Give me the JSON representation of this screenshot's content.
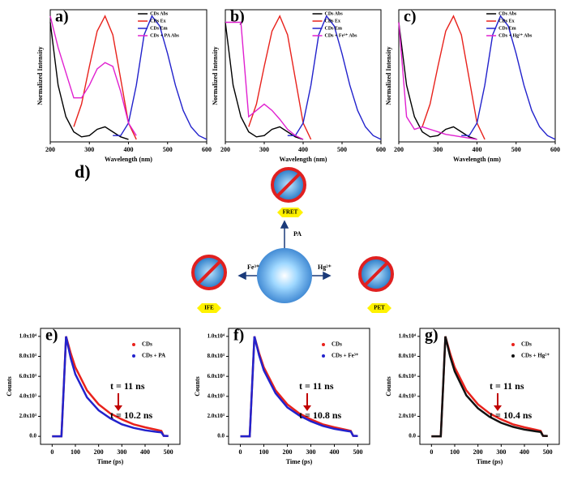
{
  "chart_data": [
    {
      "type": "line",
      "label": "a)",
      "xlabel": "Wavelength (nm)",
      "ylabel": "Normalized Intensity",
      "legend": "upper right",
      "x": [
        200,
        220,
        240,
        260,
        280,
        300,
        320,
        340,
        360,
        380,
        400,
        420,
        440,
        460,
        480,
        500,
        520,
        540,
        560,
        580,
        600
      ],
      "xlim": [
        200,
        600
      ],
      "xticks": [
        200,
        300,
        400,
        500,
        600
      ],
      "ylim": [
        0,
        1.05
      ],
      "series": [
        {
          "name": "CDs Abs",
          "color": "#000000",
          "values": [
            0.95,
            0.45,
            0.2,
            0.08,
            0.04,
            0.05,
            0.1,
            0.12,
            0.08,
            0.04,
            0.02,
            null,
            null,
            null,
            null,
            null,
            null,
            null,
            null,
            null,
            null
          ]
        },
        {
          "name": "CDs Ex",
          "color": "#e8221c",
          "values": [
            null,
            null,
            null,
            0.12,
            0.3,
            0.6,
            0.88,
            1.0,
            0.85,
            0.5,
            0.15,
            0.02,
            null,
            null,
            null,
            null,
            null,
            null,
            null,
            null,
            null
          ]
        },
        {
          "name": "CDs Em",
          "color": "#2222cc",
          "values": [
            null,
            null,
            null,
            null,
            null,
            null,
            null,
            null,
            0.05,
            0.05,
            0.15,
            0.45,
            0.85,
            1.0,
            0.92,
            0.7,
            0.45,
            0.25,
            0.12,
            0.05,
            0.02
          ]
        },
        {
          "name": "CDs + PA Abs",
          "color": "#e020d0",
          "values": [
            1.0,
            0.75,
            0.55,
            0.35,
            0.35,
            0.45,
            0.58,
            0.63,
            0.6,
            0.4,
            0.15,
            0.05,
            null,
            null,
            null,
            null,
            null,
            null,
            null,
            null,
            null
          ]
        }
      ]
    },
    {
      "type": "line",
      "label": "b)",
      "xlabel": "Wavelength (nm)",
      "ylabel": "Normalized Intensity",
      "legend": "upper right",
      "x": [
        200,
        220,
        240,
        260,
        280,
        300,
        320,
        340,
        360,
        380,
        400,
        420,
        440,
        460,
        480,
        500,
        520,
        540,
        560,
        580,
        600
      ],
      "xlim": [
        200,
        600
      ],
      "xticks": [
        200,
        300,
        400,
        500,
        600
      ],
      "ylim": [
        0,
        1.05
      ],
      "series": [
        {
          "name": "CDs Abs",
          "color": "#000000",
          "values": [
            0.95,
            0.45,
            0.2,
            0.08,
            0.04,
            0.05,
            0.1,
            0.12,
            0.08,
            0.04,
            0.02,
            null,
            null,
            null,
            null,
            null,
            null,
            null,
            null,
            null,
            null
          ]
        },
        {
          "name": "CDs Ex",
          "color": "#e8221c",
          "values": [
            null,
            null,
            null,
            0.12,
            0.3,
            0.6,
            0.88,
            1.0,
            0.85,
            0.5,
            0.15,
            0.02,
            null,
            null,
            null,
            null,
            null,
            null,
            null,
            null,
            null
          ]
        },
        {
          "name": "CDs Em",
          "color": "#2222cc",
          "values": [
            null,
            null,
            null,
            null,
            null,
            null,
            null,
            null,
            0.05,
            0.05,
            0.15,
            0.45,
            0.85,
            1.0,
            0.92,
            0.7,
            0.45,
            0.25,
            0.12,
            0.05,
            0.02
          ]
        },
        {
          "name": "CDs + Fe³⁺ Abs",
          "color": "#e020d0",
          "values": [
            0.95,
            0.95,
            0.95,
            0.2,
            0.25,
            0.3,
            0.25,
            0.18,
            0.1,
            0.05,
            0.02,
            null,
            null,
            null,
            null,
            null,
            null,
            null,
            null,
            null,
            null
          ]
        }
      ]
    },
    {
      "type": "line",
      "label": "c)",
      "xlabel": "Wavelength (nm)",
      "ylabel": "Normalized Intensity",
      "legend": "upper right",
      "x": [
        200,
        220,
        240,
        260,
        280,
        300,
        320,
        340,
        360,
        380,
        400,
        420,
        440,
        460,
        480,
        500,
        520,
        540,
        560,
        580,
        600
      ],
      "xlim": [
        200,
        600
      ],
      "xticks": [
        200,
        300,
        400,
        500,
        600
      ],
      "ylim": [
        0,
        1.05
      ],
      "series": [
        {
          "name": "CDs Abs",
          "color": "#000000",
          "values": [
            0.95,
            0.45,
            0.2,
            0.08,
            0.04,
            0.05,
            0.1,
            0.12,
            0.08,
            0.04,
            0.02,
            null,
            null,
            null,
            null,
            null,
            null,
            null,
            null,
            null,
            null
          ]
        },
        {
          "name": "CDs Ex",
          "color": "#e8221c",
          "values": [
            null,
            null,
            null,
            0.12,
            0.3,
            0.6,
            0.88,
            1.0,
            0.85,
            0.5,
            0.15,
            0.02,
            null,
            null,
            null,
            null,
            null,
            null,
            null,
            null,
            null
          ]
        },
        {
          "name": "CDs Em",
          "color": "#2222cc",
          "values": [
            null,
            null,
            null,
            null,
            null,
            null,
            null,
            null,
            0.05,
            0.05,
            0.15,
            0.45,
            0.85,
            1.0,
            0.92,
            0.7,
            0.45,
            0.25,
            0.12,
            0.05,
            0.02
          ]
        },
        {
          "name": "CDs + Hg²⁺ Abs",
          "color": "#e020d0",
          "values": [
            0.95,
            0.2,
            0.1,
            0.12,
            0.1,
            0.08,
            0.06,
            0.05,
            0.04,
            0.03,
            0.02,
            null,
            null,
            null,
            null,
            null,
            null,
            null,
            null,
            null,
            null
          ]
        }
      ]
    },
    {
      "type": "line",
      "label": "e)",
      "xlabel": "Time (ps)",
      "ylabel": "Counts",
      "legend": "upper right",
      "x": [
        0,
        40,
        50,
        60,
        80,
        100,
        150,
        200,
        250,
        300,
        350,
        400,
        450,
        470,
        480,
        500
      ],
      "xlim": [
        -50,
        550
      ],
      "xticks": [
        0,
        100,
        200,
        300,
        400,
        500
      ],
      "ylim": [
        -800,
        10800
      ],
      "yticks": [
        {
          "value": 0,
          "label": "0.0"
        },
        {
          "value": 2000,
          "label": "2.0x10³"
        },
        {
          "value": 4000,
          "label": "4.0x10³"
        },
        {
          "value": 6000,
          "label": "6.0x10³"
        },
        {
          "value": 8000,
          "label": "8.0x10³"
        },
        {
          "value": 10000,
          "label": "1.0x10⁴"
        }
      ],
      "annotations": [
        "t = 11 ns",
        "t = 10.2 ns"
      ],
      "series": [
        {
          "name": "CDs",
          "color": "#e8221c",
          "values": [
            0,
            0,
            5000,
            10000,
            8300,
            6900,
            4600,
            3200,
            2300,
            1700,
            1200,
            900,
            650,
            550,
            50,
            30
          ]
        },
        {
          "name": "CDs + PA",
          "color": "#2222cc",
          "values": [
            0,
            0,
            5000,
            10000,
            7800,
            6200,
            3900,
            2600,
            1800,
            1200,
            850,
            600,
            450,
            400,
            50,
            30
          ]
        }
      ]
    },
    {
      "type": "line",
      "label": "f)",
      "xlabel": "Time (ps)",
      "ylabel": "Counts",
      "legend": "upper right",
      "x": [
        0,
        40,
        50,
        60,
        80,
        100,
        150,
        200,
        250,
        300,
        350,
        400,
        450,
        470,
        480,
        500
      ],
      "xlim": [
        -50,
        550
      ],
      "xticks": [
        0,
        100,
        200,
        300,
        400,
        500
      ],
      "ylim": [
        -800,
        10800
      ],
      "yticks": [
        {
          "value": 0,
          "label": "0.0"
        },
        {
          "value": 2000,
          "label": "2.0x10³"
        },
        {
          "value": 4000,
          "label": "4.0x10³"
        },
        {
          "value": 6000,
          "label": "6.0x10³"
        },
        {
          "value": 8000,
          "label": "8.0x10³"
        },
        {
          "value": 10000,
          "label": "1.0x10⁴"
        }
      ],
      "annotations": [
        "t = 11 ns",
        "t = 10.8 ns"
      ],
      "series": [
        {
          "name": "CDs",
          "color": "#e8221c",
          "values": [
            0,
            0,
            5000,
            10000,
            8300,
            6900,
            4600,
            3200,
            2300,
            1700,
            1200,
            900,
            650,
            550,
            50,
            30
          ]
        },
        {
          "name": "CDs + Fe³⁺",
          "color": "#2222cc",
          "values": [
            0,
            0,
            5000,
            10000,
            8100,
            6600,
            4300,
            2900,
            2100,
            1500,
            1050,
            750,
            550,
            480,
            50,
            30
          ]
        }
      ]
    },
    {
      "type": "line",
      "label": "g)",
      "xlabel": "Time (ps)",
      "ylabel": "Counts",
      "legend": "upper right",
      "x": [
        0,
        40,
        50,
        60,
        80,
        100,
        150,
        200,
        250,
        300,
        350,
        400,
        450,
        470,
        480,
        500
      ],
      "xlim": [
        -50,
        550
      ],
      "xticks": [
        0,
        100,
        200,
        300,
        400,
        500
      ],
      "ylim": [
        -800,
        10800
      ],
      "yticks": [
        {
          "value": 0,
          "label": "0.0"
        },
        {
          "value": 2000,
          "label": "2.0x10³"
        },
        {
          "value": 4000,
          "label": "4.0x10³"
        },
        {
          "value": 6000,
          "label": "6.0x10³"
        },
        {
          "value": 8000,
          "label": "8.0x10³"
        },
        {
          "value": 10000,
          "label": "1.0x10⁴"
        }
      ],
      "annotations": [
        "t = 11 ns",
        "t = 10.4 ns"
      ],
      "series": [
        {
          "name": "CDs",
          "color": "#e8221c",
          "values": [
            0,
            0,
            5000,
            10000,
            8300,
            6900,
            4600,
            3200,
            2300,
            1700,
            1200,
            900,
            650,
            550,
            50,
            30
          ]
        },
        {
          "name": "CDs + Hg²⁺",
          "color": "#111111",
          "values": [
            0,
            0,
            5000,
            10000,
            8000,
            6500,
            4100,
            2800,
            1950,
            1350,
            950,
            680,
            500,
            440,
            50,
            30
          ]
        }
      ]
    }
  ],
  "diagram": {
    "label": "d)",
    "nodes": [
      {
        "mechanism": "FRET",
        "quencher": "PA"
      },
      {
        "mechanism": "IFE",
        "quencher": "Fe³⁺"
      },
      {
        "mechanism": "PET",
        "quencher": "Hg²⁺"
      }
    ]
  }
}
